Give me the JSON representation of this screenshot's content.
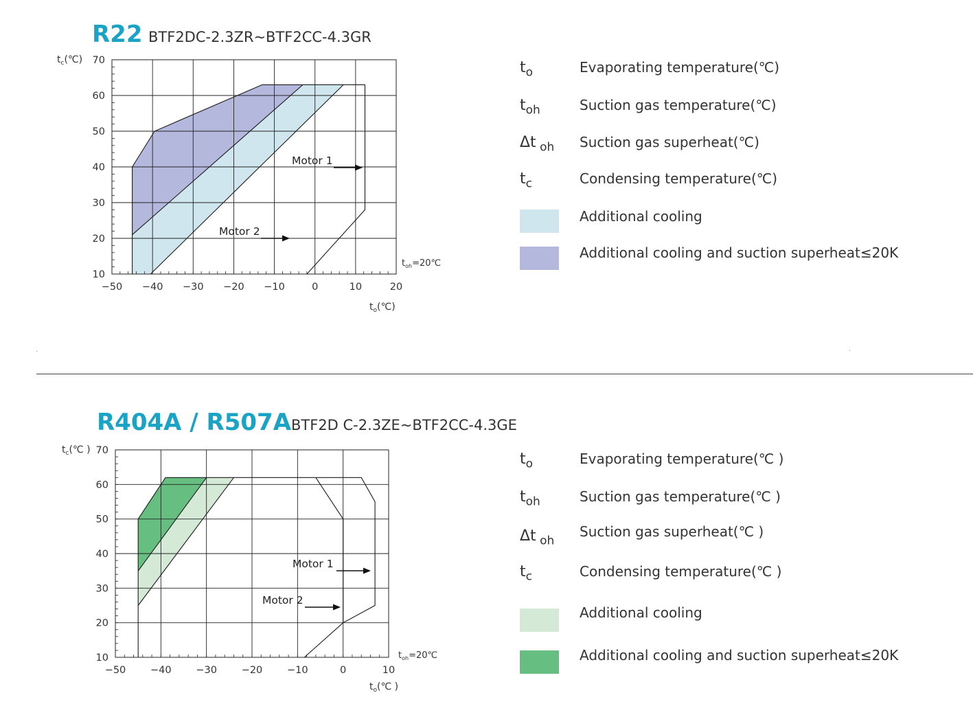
{
  "charts": [
    {
      "title": "R22",
      "subtitle": "BTF2DC-2.3ZR~BTF2CC-4.3GR",
      "ylabel_main": "t",
      "ylabel_sub": "c",
      "ylabel_unit": "(℃)",
      "xlabel_main": "t",
      "xlabel_sub": "o",
      "xlabel_unit": "(℃)",
      "toh_main": "t",
      "toh_sub": "oh",
      "toh_value": "=20℃",
      "motor1": "Motor 1",
      "motor2": "Motor 2",
      "legend": [
        {
          "symbol": "t",
          "sub": "o",
          "text": "Evaporating temperature(℃)"
        },
        {
          "symbol": "t",
          "sub": "oh",
          "text": "Suction gas temperature(℃)"
        },
        {
          "symbol": "Δt",
          "sub": "oh",
          "text": "Suction gas superheat(℃)"
        },
        {
          "symbol": "t",
          "sub": "c",
          "text": "Condensing temperature(℃)"
        },
        {
          "swatch": "#cfe6ee",
          "text": "Additional cooling"
        },
        {
          "swatch": "#b5b8dd",
          "text": "Additional cooling and suction superheat≤20K"
        }
      ]
    },
    {
      "title": "R404A / R507A",
      "subtitle": "BTF2D C-2.3ZE~BTF2CC-4.3GE",
      "ylabel_main": "t",
      "ylabel_sub": "c",
      "ylabel_unit": "(℃ )",
      "xlabel_main": "t",
      "xlabel_sub": "o",
      "xlabel_unit": "(℃ )",
      "toh_main": "t",
      "toh_sub": "oh",
      "toh_value": "=20℃",
      "motor1": "Motor 1",
      "motor2": "Motor 2",
      "legend": [
        {
          "symbol": "t",
          "sub": "o",
          "text": "Evaporating temperature(℃ )"
        },
        {
          "symbol": "t",
          "sub": "oh",
          "text": "Suction gas temperature(℃ )"
        },
        {
          "symbol": "Δt",
          "sub": "oh",
          "text": "Suction gas superheat(℃ )"
        },
        {
          "symbol": "t",
          "sub": "c",
          "text": "Condensing temperature(℃ )"
        },
        {
          "swatch": "#d4ead6",
          "text": "Additional cooling"
        },
        {
          "swatch": "#66bf80",
          "text": "Additional cooling and suction superheat≤20K"
        }
      ]
    }
  ],
  "chart_data": [
    {
      "type": "area",
      "title": "R22",
      "subtitle": "BTF2DC-2.3ZR~BTF2CC-4.3GR",
      "xlabel": "to(℃)",
      "ylabel": "tc(℃)",
      "xlim": [
        -50,
        20
      ],
      "ylim": [
        10,
        70
      ],
      "xticks": [
        -50,
        -40,
        -30,
        -20,
        -10,
        0,
        10,
        20
      ],
      "yticks": [
        10,
        20,
        30,
        40,
        50,
        60,
        70
      ],
      "grid": true,
      "series": [
        {
          "name": "Additional cooling and suction superheat≤20K",
          "color": "#b5b8dd",
          "points": [
            [
              -45,
              10
            ],
            [
              -45,
              40
            ],
            [
              -39.5,
              50
            ],
            [
              -13,
              63
            ],
            [
              -9,
              63
            ],
            [
              -3,
              63
            ],
            [
              -45,
              21
            ]
          ]
        },
        {
          "name": "Additional cooling",
          "color": "#cfe6ee",
          "points": [
            [
              -45,
              10
            ],
            [
              -45,
              21
            ],
            [
              -3,
              63
            ],
            [
              7,
              63
            ],
            [
              -40.5,
              10
            ]
          ]
        }
      ],
      "envelope_lines": [
        {
          "points": [
            [
              -45,
              10
            ],
            [
              -45,
              40
            ],
            [
              -39.5,
              50
            ],
            [
              -13,
              63
            ],
            [
              12.3,
              63
            ],
            [
              12.3,
              28
            ],
            [
              -2,
              10
            ]
          ]
        },
        {
          "points": [
            [
              -45,
              21
            ],
            [
              -3,
              63
            ]
          ]
        },
        {
          "points": [
            [
              -40.5,
              10
            ],
            [
              7,
              63
            ]
          ]
        }
      ],
      "annotations": [
        "Motor 1",
        "Motor 2",
        "toh=20℃"
      ]
    },
    {
      "type": "area",
      "title": "R404A / R507A",
      "subtitle": "BTF2D C-2.3ZE~BTF2CC-4.3GE",
      "xlabel": "to(℃ )",
      "ylabel": "tc(℃ )",
      "xlim": [
        -50,
        10
      ],
      "ylim": [
        10,
        70
      ],
      "xticks": [
        -50,
        -40,
        -30,
        -20,
        -10,
        0,
        10
      ],
      "yticks": [
        10,
        20,
        30,
        40,
        50,
        60,
        70
      ],
      "grid": true,
      "series": [
        {
          "name": "Additional cooling and suction superheat≤20K",
          "color": "#66bf80",
          "points": [
            [
              -45,
              35
            ],
            [
              -45,
              50
            ],
            [
              -39,
              62
            ],
            [
              -30,
              62
            ]
          ]
        },
        {
          "name": "Additional cooling",
          "color": "#d4ead6",
          "points": [
            [
              -45,
              25
            ],
            [
              -45,
              35
            ],
            [
              -30,
              62
            ],
            [
              -24,
              62
            ]
          ]
        }
      ],
      "envelope_lines": [
        {
          "points": [
            [
              -45,
              10
            ],
            [
              -45,
              50
            ],
            [
              -39,
              62
            ],
            [
              4,
              62
            ],
            [
              7,
              55
            ],
            [
              7,
              25
            ],
            [
              0,
              20
            ],
            [
              -8.5,
              10
            ]
          ]
        },
        {
          "points": [
            [
              -45,
              35
            ],
            [
              -30,
              62
            ]
          ]
        },
        {
          "points": [
            [
              -45,
              25
            ],
            [
              -24,
              62
            ]
          ]
        },
        {
          "points": [
            [
              -6,
              62
            ],
            [
              0,
              50
            ],
            [
              0,
              20
            ]
          ]
        }
      ],
      "annotations": [
        "Motor 1",
        "Motor 2",
        "toh=20℃"
      ]
    }
  ]
}
